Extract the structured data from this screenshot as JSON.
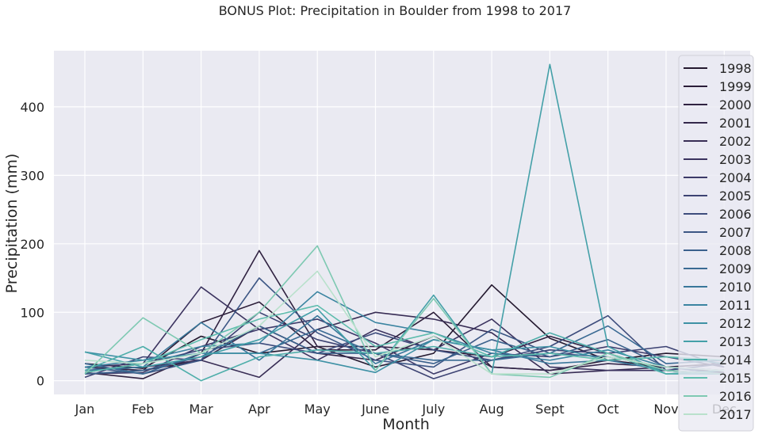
{
  "chart_data": {
    "type": "line",
    "title": "BONUS Plot: Precipitation in Boulder from 1998 to 2017",
    "xlabel": "Month",
    "ylabel": "Precipitation (mm)",
    "categories": [
      "Jan",
      "Feb",
      "Mar",
      "Apr",
      "May",
      "June",
      "July",
      "Aug",
      "Sept",
      "Oct",
      "Nov",
      "Dec"
    ],
    "ylim": [
      -20,
      482
    ],
    "yticks": [
      0,
      100,
      200,
      300,
      400
    ],
    "grid": true,
    "legend_position": "upper-right",
    "series": [
      {
        "name": "1998",
        "color": "#24192f",
        "values": [
          25,
          18,
          65,
          40,
          50,
          20,
          40,
          140,
          62,
          30,
          40,
          35
        ]
      },
      {
        "name": "1999",
        "color": "#2b1d38",
        "values": [
          20,
          15,
          85,
          115,
          45,
          45,
          100,
          20,
          15,
          30,
          20,
          25
        ]
      },
      {
        "name": "2000",
        "color": "#302241",
        "values": [
          12,
          3,
          40,
          190,
          50,
          50,
          45,
          35,
          65,
          40,
          15,
          10
        ]
      },
      {
        "name": "2001",
        "color": "#34284b",
        "values": [
          20,
          15,
          30,
          80,
          40,
          30,
          65,
          20,
          15,
          25,
          20,
          15
        ]
      },
      {
        "name": "2002",
        "color": "#382d55",
        "values": [
          15,
          20,
          30,
          5,
          75,
          100,
          90,
          70,
          10,
          15,
          20,
          12
        ]
      },
      {
        "name": "2003",
        "color": "#3b335f",
        "values": [
          20,
          25,
          137,
          75,
          30,
          75,
          45,
          90,
          20,
          15,
          15,
          10
        ]
      },
      {
        "name": "2004",
        "color": "#3c3a69",
        "values": [
          10,
          12,
          50,
          75,
          90,
          55,
          10,
          40,
          35,
          50,
          35,
          20
        ]
      },
      {
        "name": "2005",
        "color": "#3d4373",
        "values": [
          5,
          35,
          30,
          100,
          60,
          40,
          3,
          30,
          45,
          40,
          50,
          20
        ]
      },
      {
        "name": "2006",
        "color": "#3d4c7c",
        "values": [
          12,
          25,
          45,
          55,
          40,
          70,
          45,
          30,
          50,
          95,
          15,
          25
        ]
      },
      {
        "name": "2007",
        "color": "#3c5684",
        "values": [
          20,
          10,
          30,
          150,
          70,
          30,
          20,
          75,
          40,
          35,
          20,
          15
        ]
      },
      {
        "name": "2008",
        "color": "#3b618c",
        "values": [
          10,
          15,
          35,
          80,
          40,
          40,
          25,
          60,
          35,
          60,
          20,
          10
        ]
      },
      {
        "name": "2009",
        "color": "#3a6a93",
        "values": [
          25,
          10,
          40,
          40,
          75,
          40,
          30,
          30,
          40,
          80,
          25,
          30
        ]
      },
      {
        "name": "2010",
        "color": "#39779a",
        "values": [
          15,
          20,
          85,
          30,
          95,
          25,
          60,
          45,
          25,
          30,
          15,
          10
        ]
      },
      {
        "name": "2011",
        "color": "#3b84a1",
        "values": [
          20,
          30,
          50,
          55,
          130,
          85,
          70,
          40,
          30,
          45,
          20,
          15
        ]
      },
      {
        "name": "2012",
        "color": "#3e91a5",
        "values": [
          42,
          30,
          40,
          40,
          30,
          12,
          60,
          45,
          50,
          30,
          35,
          25
        ]
      },
      {
        "name": "2013",
        "color": "#44a0a8",
        "values": [
          42,
          20,
          35,
          60,
          105,
          15,
          125,
          10,
          462,
          50,
          10,
          10
        ]
      },
      {
        "name": "2014",
        "color": "#4eaeaa",
        "values": [
          15,
          50,
          0,
          35,
          45,
          40,
          50,
          35,
          70,
          40,
          10,
          15
        ]
      },
      {
        "name": "2015",
        "color": "#5dbcad",
        "values": [
          12,
          25,
          60,
          90,
          110,
          50,
          70,
          35,
          40,
          30,
          35,
          30
        ]
      },
      {
        "name": "2016",
        "color": "#7ec9b2",
        "values": [
          10,
          92,
          40,
          100,
          197,
          15,
          120,
          10,
          5,
          40,
          15,
          10
        ]
      },
      {
        "name": "2017",
        "color": "#b9e1cc",
        "values": [
          30,
          25,
          40,
          80,
          160,
          35,
          65,
          10,
          10,
          35,
          20,
          15
        ]
      }
    ]
  }
}
